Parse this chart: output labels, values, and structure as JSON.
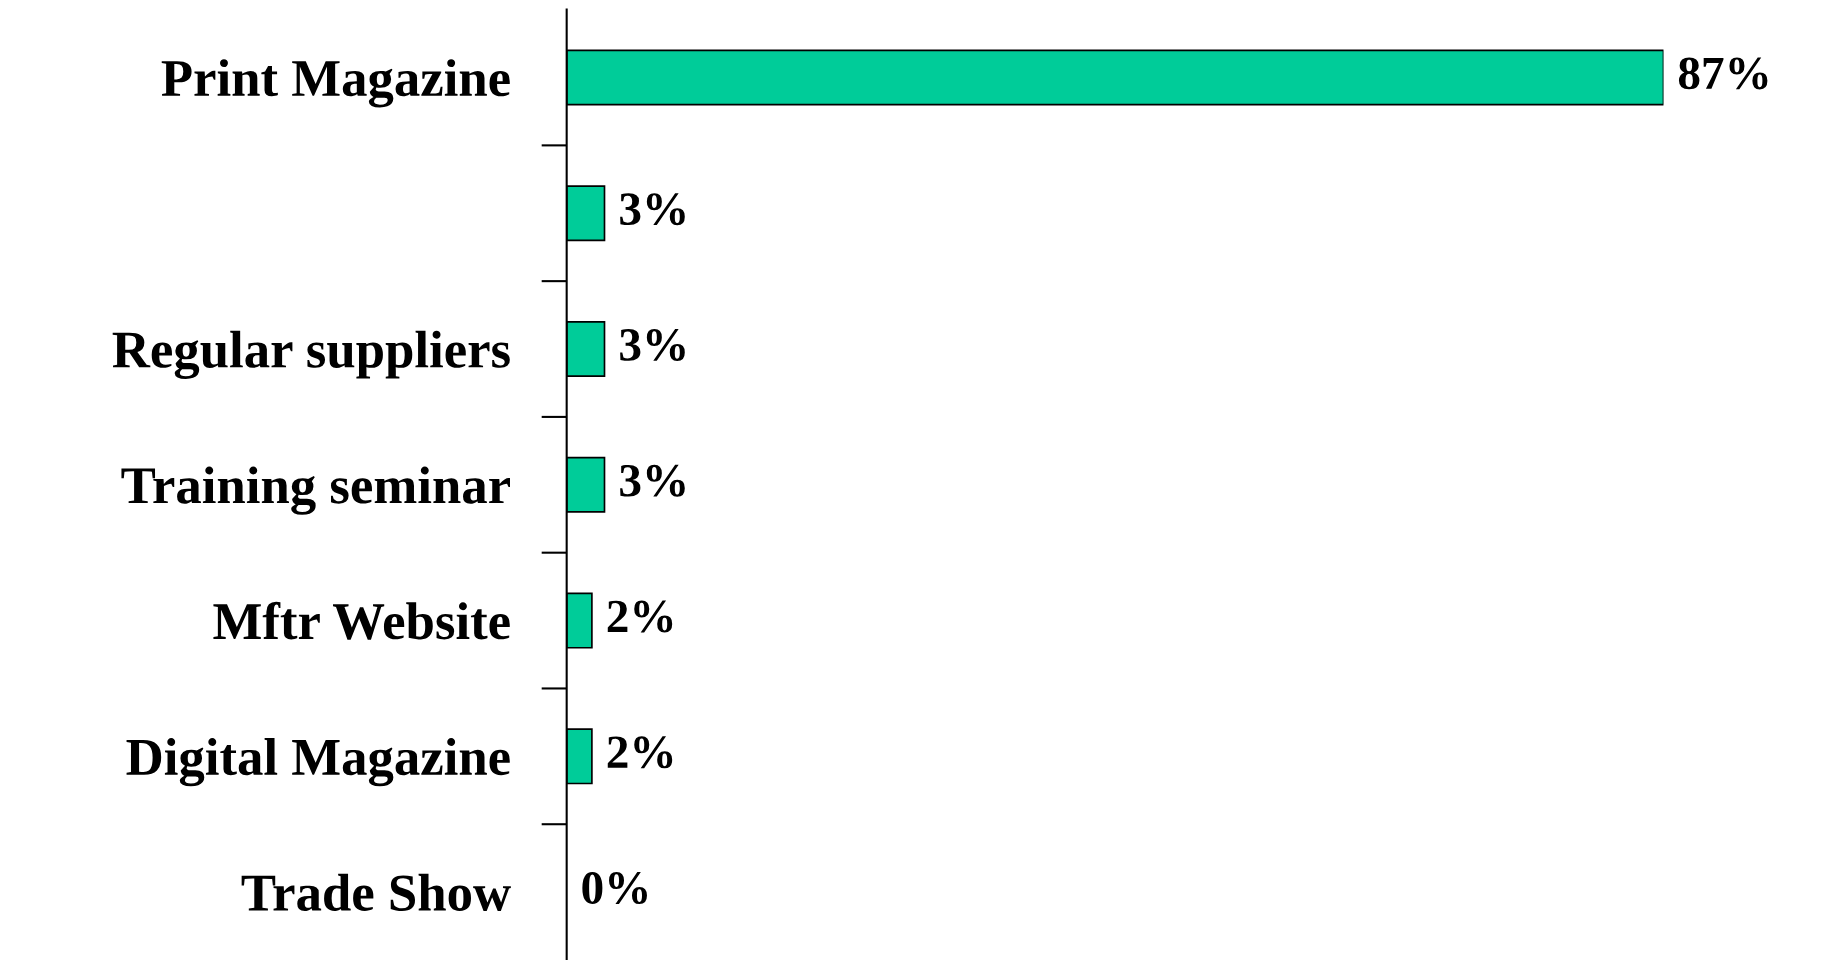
{
  "chart_data": {
    "type": "bar",
    "orientation": "horizontal",
    "categories": [
      "Print Magazine",
      null,
      "Regular suppliers",
      "Training seminar",
      "Mftr Website",
      "Digital Magazine",
      "Trade Show"
    ],
    "values": [
      87,
      3,
      3,
      3,
      2,
      2,
      0
    ],
    "value_labels": [
      "87%",
      "3%",
      "3%",
      "3%",
      "2%",
      "2%",
      "0%"
    ],
    "color": "#00cc99",
    "grid": false,
    "legend": false
  }
}
